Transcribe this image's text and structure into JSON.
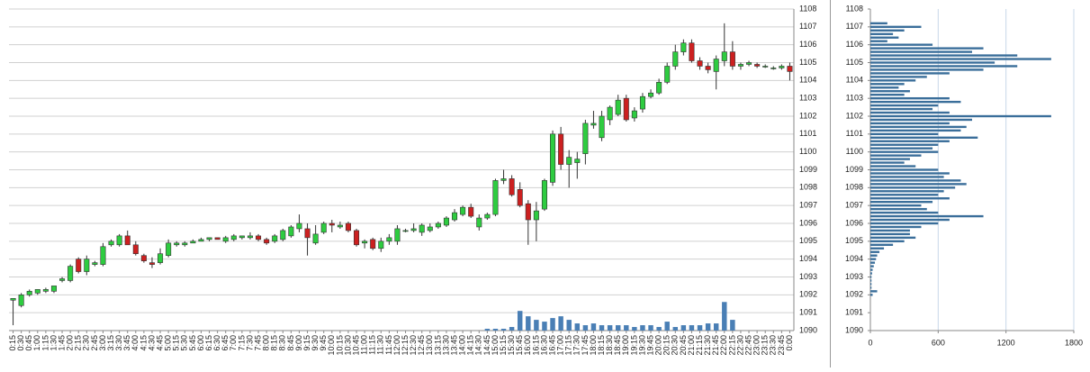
{
  "chart_data": [
    {
      "type": "candlestick",
      "categories": [
        "0:15",
        "0:30",
        "0:45",
        "1:00",
        "1:15",
        "1:30",
        "1:45",
        "2:00",
        "2:15",
        "2:30",
        "2:45",
        "3:00",
        "3:15",
        "3:30",
        "3:45",
        "4:00",
        "4:15",
        "4:30",
        "4:45",
        "5:00",
        "5:15",
        "5:30",
        "5:45",
        "6:00",
        "6:15",
        "6:30",
        "6:45",
        "7:00",
        "7:15",
        "7:30",
        "7:45",
        "8:00",
        "8:15",
        "8:30",
        "8:45",
        "9:00",
        "9:15",
        "9:30",
        "9:45",
        "10:00",
        "10:15",
        "10:30",
        "10:45",
        "11:00",
        "11:15",
        "11:30",
        "11:45",
        "12:00",
        "12:15",
        "12:30",
        "12:45",
        "13:00",
        "13:15",
        "13:30",
        "13:45",
        "14:00",
        "14:15",
        "14:30",
        "14:45",
        "15:00",
        "15:15",
        "15:30",
        "15:45",
        "16:00",
        "16:15",
        "16:30",
        "16:45",
        "17:00",
        "17:15",
        "17:30",
        "17:45",
        "18:00",
        "18:15",
        "18:30",
        "18:45",
        "19:00",
        "19:15",
        "19:30",
        "19:45",
        "20:00",
        "20:15",
        "20:30",
        "20:45",
        "21:00",
        "21:15",
        "21:30",
        "21:45",
        "22:00",
        "22:15",
        "22:30",
        "22:45",
        "23:00",
        "23:15",
        "23:30",
        "23:45",
        "0:00"
      ],
      "open": [
        1091.7,
        1091.4,
        1092.0,
        1092.1,
        1092.2,
        1092.2,
        1092.8,
        1092.8,
        1094.0,
        1093.3,
        1093.7,
        1093.7,
        1094.8,
        1094.8,
        1095.3,
        1094.8,
        1094.2,
        1093.8,
        1093.8,
        1094.2,
        1094.8,
        1094.8,
        1094.9,
        1095.0,
        1095.1,
        1095.2,
        1095.0,
        1095.1,
        1095.2,
        1095.2,
        1095.3,
        1095.1,
        1095.0,
        1095.1,
        1095.3,
        1095.7,
        1095.7,
        1094.9,
        1095.5,
        1096.0,
        1095.8,
        1096.0,
        1095.6,
        1094.9,
        1095.1,
        1094.6,
        1095.0,
        1095.0,
        1095.6,
        1095.6,
        1095.5,
        1095.6,
        1095.8,
        1095.9,
        1096.2,
        1096.5,
        1096.9,
        1095.8,
        1096.3,
        1096.5,
        1098.4,
        1098.5,
        1097.9,
        1097.1,
        1096.2,
        1096.8,
        1098.3,
        1101.0,
        1099.3,
        1099.4,
        1099.9,
        1101.5,
        1100.8,
        1101.8,
        1102.1,
        1103.0,
        1101.9,
        1102.4,
        1103.1,
        1103.3,
        1103.9,
        1104.8,
        1105.6,
        1106.1,
        1105.1,
        1104.8,
        1104.5,
        1105.1,
        1105.6,
        1104.8,
        1104.9,
        1104.9,
        1104.8,
        1104.7,
        1104.7,
        1104.8
      ],
      "high": [
        1091.8,
        1092.1,
        1092.3,
        1092.3,
        1092.4,
        1092.5,
        1093.0,
        1093.7,
        1094.1,
        1094.2,
        1093.9,
        1094.9,
        1095.1,
        1095.4,
        1095.6,
        1095.0,
        1094.3,
        1094.1,
        1094.6,
        1095.1,
        1095.0,
        1095.0,
        1095.1,
        1095.2,
        1095.2,
        1095.2,
        1095.3,
        1095.4,
        1095.3,
        1095.5,
        1095.4,
        1095.2,
        1095.4,
        1095.7,
        1095.9,
        1096.5,
        1096.0,
        1095.9,
        1096.1,
        1096.2,
        1096.1,
        1096.1,
        1095.7,
        1095.1,
        1095.2,
        1095.2,
        1095.4,
        1095.9,
        1095.7,
        1096.0,
        1096.0,
        1096.0,
        1096.1,
        1096.4,
        1096.8,
        1097.0,
        1097.1,
        1096.5,
        1096.6,
        1098.5,
        1099.0,
        1098.7,
        1098.3,
        1097.3,
        1097.2,
        1098.5,
        1101.2,
        1101.4,
        1100.1,
        1100.0,
        1101.8,
        1102.3,
        1102.3,
        1102.6,
        1103.2,
        1103.2,
        1102.5,
        1103.3,
        1103.5,
        1104.1,
        1105.0,
        1106.0,
        1106.3,
        1106.3,
        1105.3,
        1105.0,
        1105.4,
        1107.2,
        1106.2,
        1105.0,
        1105.1,
        1105.0,
        1104.9,
        1104.8,
        1104.9,
        1105.0
      ],
      "low": [
        1090.3,
        1091.3,
        1091.9,
        1092.0,
        1092.1,
        1092.1,
        1092.7,
        1092.7,
        1093.2,
        1093.1,
        1093.6,
        1093.6,
        1094.7,
        1094.7,
        1094.8,
        1094.2,
        1093.8,
        1093.5,
        1093.7,
        1094.1,
        1094.7,
        1094.7,
        1094.9,
        1095.0,
        1095.0,
        1095.1,
        1094.9,
        1095.0,
        1095.1,
        1095.1,
        1095.0,
        1094.8,
        1094.9,
        1095.0,
        1095.2,
        1095.5,
        1094.2,
        1094.8,
        1095.4,
        1095.5,
        1095.7,
        1095.5,
        1094.7,
        1094.6,
        1094.5,
        1094.4,
        1094.8,
        1094.8,
        1095.5,
        1095.5,
        1095.3,
        1095.5,
        1095.7,
        1095.8,
        1096.1,
        1096.4,
        1096.3,
        1095.6,
        1096.2,
        1096.4,
        1098.2,
        1097.5,
        1096.9,
        1094.8,
        1095.0,
        1096.7,
        1098.1,
        1099.0,
        1098.0,
        1098.5,
        1099.3,
        1101.3,
        1100.6,
        1101.5,
        1102.0,
        1101.7,
        1101.7,
        1102.2,
        1103.0,
        1103.2,
        1103.8,
        1104.6,
        1105.4,
        1105.0,
        1104.6,
        1104.4,
        1103.5,
        1104.8,
        1104.6,
        1104.6,
        1104.8,
        1104.7,
        1104.7,
        1104.6,
        1104.6,
        1104.0
      ],
      "close": [
        1091.8,
        1092.0,
        1092.2,
        1092.3,
        1092.3,
        1092.5,
        1092.9,
        1093.6,
        1093.3,
        1094.0,
        1093.8,
        1094.7,
        1095.0,
        1095.3,
        1094.8,
        1094.3,
        1093.9,
        1093.7,
        1094.3,
        1094.9,
        1094.9,
        1094.9,
        1095.0,
        1095.1,
        1095.2,
        1095.1,
        1095.2,
        1095.3,
        1095.3,
        1095.3,
        1095.1,
        1094.9,
        1095.3,
        1095.6,
        1095.8,
        1096.0,
        1095.2,
        1095.4,
        1096.0,
        1095.9,
        1095.9,
        1095.6,
        1094.8,
        1095.0,
        1094.6,
        1095.0,
        1095.2,
        1095.7,
        1095.6,
        1095.7,
        1095.9,
        1095.8,
        1096.0,
        1096.3,
        1096.6,
        1096.9,
        1096.4,
        1096.3,
        1096.5,
        1098.4,
        1098.5,
        1097.6,
        1097.0,
        1096.2,
        1096.7,
        1098.4,
        1101.0,
        1099.3,
        1099.7,
        1099.6,
        1101.6,
        1101.6,
        1102.0,
        1102.5,
        1102.9,
        1101.8,
        1102.3,
        1103.1,
        1103.3,
        1103.9,
        1104.8,
        1105.6,
        1106.1,
        1105.1,
        1104.8,
        1104.6,
        1105.2,
        1105.6,
        1104.8,
        1104.9,
        1105.0,
        1104.8,
        1104.8,
        1104.7,
        1104.8,
        1104.5
      ],
      "up_color": "#2ecc40",
      "down_color": "#cc2020",
      "volume": {
        "color": "#4a7fb5",
        "values": [
          null,
          null,
          null,
          null,
          null,
          null,
          null,
          null,
          null,
          null,
          null,
          null,
          null,
          null,
          null,
          null,
          null,
          null,
          null,
          null,
          null,
          null,
          null,
          null,
          null,
          null,
          null,
          null,
          null,
          null,
          null,
          null,
          null,
          null,
          null,
          null,
          null,
          null,
          null,
          null,
          null,
          null,
          null,
          null,
          null,
          null,
          null,
          null,
          null,
          null,
          null,
          null,
          null,
          null,
          null,
          null,
          null,
          null,
          0.1,
          0.1,
          0.1,
          0.2,
          1.1,
          0.8,
          0.6,
          0.5,
          0.7,
          0.8,
          0.6,
          0.4,
          0.3,
          0.4,
          0.3,
          0.3,
          0.3,
          0.3,
          0.2,
          0.3,
          0.3,
          0.2,
          0.5,
          0.2,
          0.3,
          0.3,
          0.3,
          0.4,
          0.4,
          1.6,
          0.6,
          null,
          null,
          null,
          null,
          null,
          null,
          null
        ]
      },
      "ylim": [
        1090,
        1108
      ],
      "yticks": [
        1090,
        1091,
        1092,
        1093,
        1094,
        1095,
        1096,
        1097,
        1098,
        1099,
        1100,
        1101,
        1102,
        1103,
        1104,
        1105,
        1106,
        1107,
        1108
      ],
      "grid": true
    },
    {
      "type": "hbar",
      "y": [
        1092.0,
        1092.2,
        1092.4,
        1092.6,
        1092.8,
        1093.0,
        1093.2,
        1093.4,
        1093.6,
        1093.8,
        1094.0,
        1094.2,
        1094.4,
        1094.6,
        1094.8,
        1095.0,
        1095.2,
        1095.4,
        1095.6,
        1095.8,
        1096.0,
        1096.2,
        1096.4,
        1096.6,
        1096.8,
        1097.0,
        1097.2,
        1097.4,
        1097.6,
        1097.8,
        1098.0,
        1098.2,
        1098.4,
        1098.6,
        1098.8,
        1099.0,
        1099.2,
        1099.4,
        1099.6,
        1099.8,
        1100.0,
        1100.2,
        1100.4,
        1100.6,
        1100.8,
        1101.0,
        1101.2,
        1101.4,
        1101.6,
        1101.8,
        1102.0,
        1102.2,
        1102.4,
        1102.6,
        1102.8,
        1103.0,
        1103.2,
        1103.4,
        1103.6,
        1103.8,
        1104.0,
        1104.2,
        1104.4,
        1104.6,
        1104.8,
        1105.0,
        1105.2,
        1105.4,
        1105.6,
        1105.8,
        1106.0,
        1106.2,
        1106.4,
        1106.6,
        1106.8,
        1107.0,
        1107.2
      ],
      "values": [
        20,
        60,
        10,
        10,
        10,
        10,
        15,
        20,
        30,
        40,
        50,
        60,
        80,
        120,
        200,
        300,
        400,
        350,
        350,
        450,
        600,
        700,
        1000,
        600,
        500,
        450,
        550,
        700,
        600,
        650,
        750,
        850,
        800,
        650,
        700,
        600,
        400,
        300,
        350,
        450,
        600,
        550,
        600,
        700,
        950,
        600,
        800,
        850,
        700,
        900,
        1600,
        700,
        550,
        600,
        800,
        700,
        300,
        350,
        250,
        300,
        400,
        500,
        700,
        1000,
        1300,
        1100,
        1600,
        1300,
        900,
        1000,
        550,
        150,
        250,
        200,
        300,
        450,
        150
      ],
      "color": "#3a6e9a",
      "ylim": [
        1090,
        1108
      ],
      "yticks": [
        1090,
        1091,
        1092,
        1093,
        1094,
        1095,
        1096,
        1097,
        1098,
        1099,
        1100,
        1101,
        1102,
        1103,
        1104,
        1105,
        1106,
        1107,
        1108
      ],
      "xlim": [
        0,
        1800
      ],
      "xticks": [
        0,
        600,
        1200,
        1800
      ],
      "grid": true
    }
  ]
}
